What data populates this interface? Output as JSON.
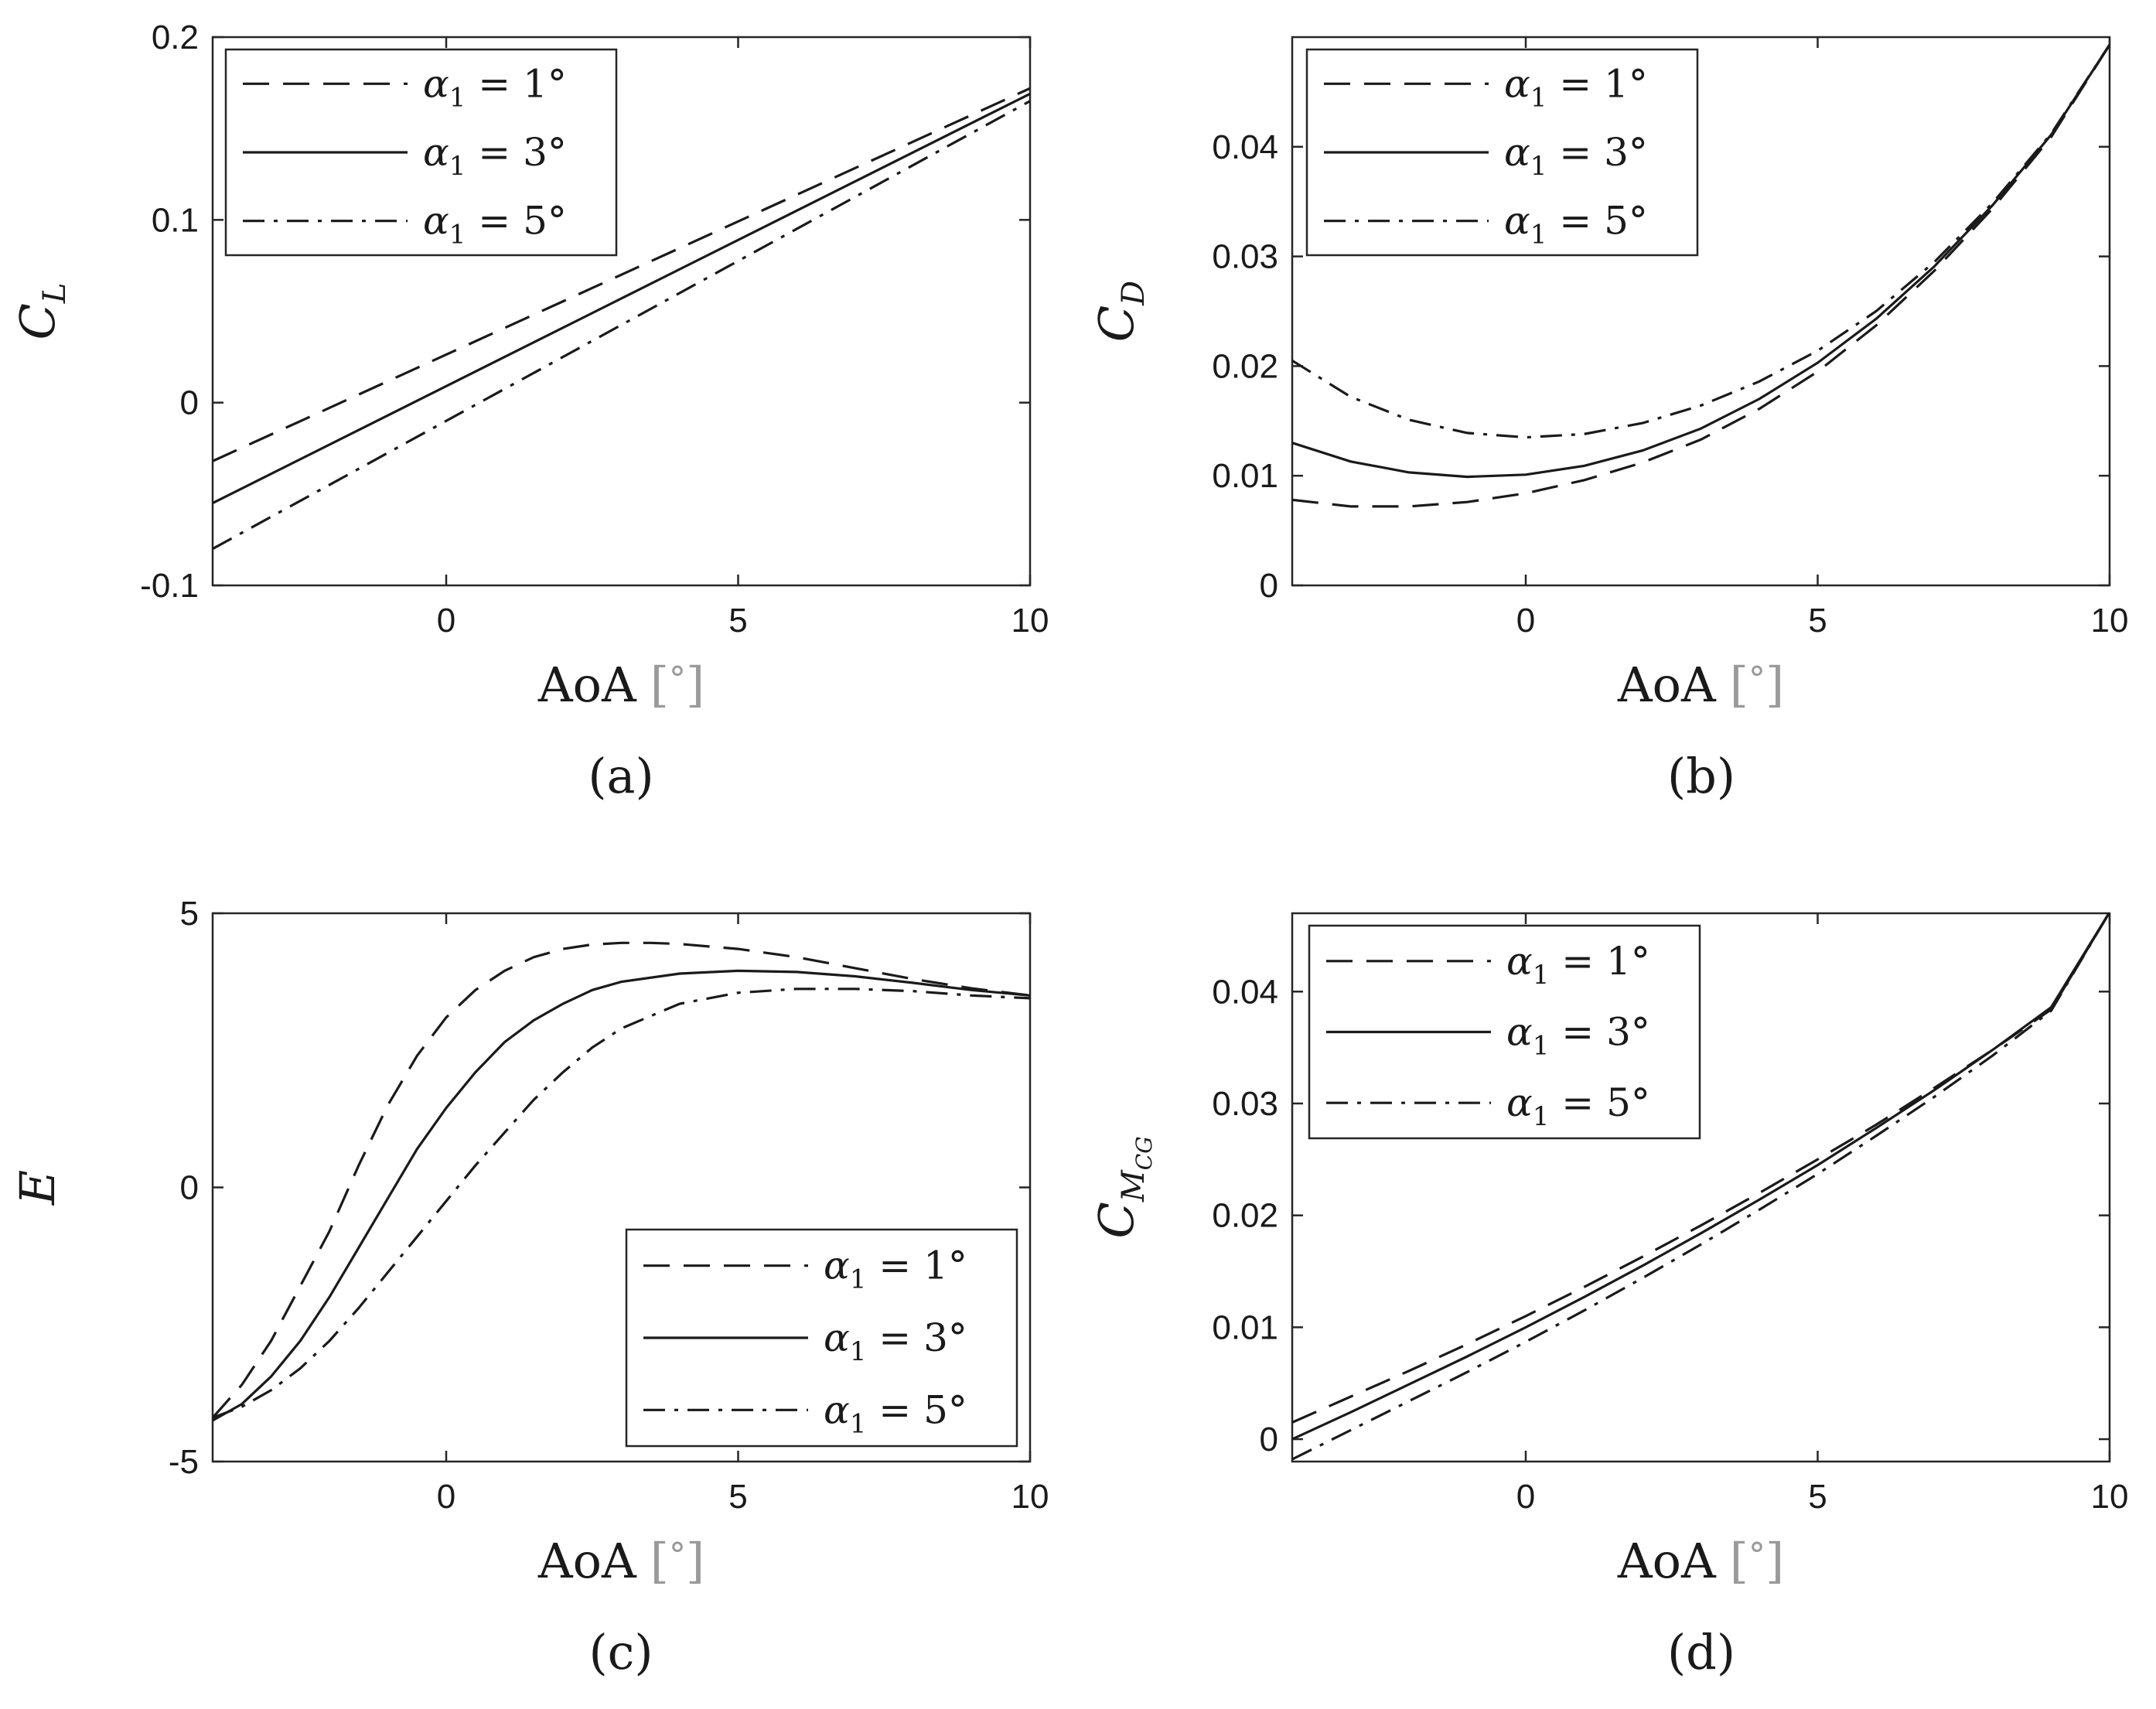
{
  "chart_data": [
    {
      "type": "line",
      "panel": "a",
      "caption": "(a)",
      "xlabel": "AoA",
      "xunit": "°",
      "ylabel": "C",
      "ylabel_sub": "L",
      "xlim": [
        -4,
        10
      ],
      "ylim": [
        -0.1,
        0.2
      ],
      "xticks": [
        0,
        5,
        10
      ],
      "xtick_labels": [
        "0",
        "5",
        "10"
      ],
      "yticks": [
        -0.1,
        0,
        0.1,
        0.2
      ],
      "ytick_labels": [
        "-0.1",
        "0",
        "0.1",
        "0.2"
      ],
      "legend_position": "top-left",
      "series": [
        {
          "name": "α1 = 1°",
          "label_main": "α",
          "label_sub": "1",
          "label_rest": " = 1°",
          "style": "dashed",
          "x": [
            -4,
            10
          ],
          "y": [
            -0.032,
            0.172
          ]
        },
        {
          "name": "α1 = 3°",
          "label_main": "α",
          "label_sub": "1",
          "label_rest": " = 3°",
          "style": "solid",
          "x": [
            -4,
            10
          ],
          "y": [
            -0.055,
            0.169
          ]
        },
        {
          "name": "α1 = 5°",
          "label_main": "α",
          "label_sub": "1",
          "label_rest": " = 5°",
          "style": "dashdot",
          "x": [
            -4,
            10
          ],
          "y": [
            -0.08,
            0.165
          ]
        }
      ]
    },
    {
      "type": "line",
      "panel": "b",
      "caption": "(b)",
      "xlabel": "AoA",
      "xunit": "°",
      "ylabel": "C",
      "ylabel_sub": "D",
      "xlim": [
        -4,
        10
      ],
      "ylim": [
        0,
        0.05
      ],
      "xticks": [
        0,
        5,
        10
      ],
      "xtick_labels": [
        "0",
        "5",
        "10"
      ],
      "yticks": [
        0,
        0.01,
        0.02,
        0.03,
        0.04
      ],
      "ytick_labels": [
        "0",
        "0.01",
        "0.02",
        "0.03",
        "0.04"
      ],
      "legend_position": "top-left",
      "series": [
        {
          "name": "α1 = 1°",
          "label_main": "α",
          "label_sub": "1",
          "label_rest": " = 1°",
          "style": "dashed",
          "x": [
            -4,
            -3,
            -2,
            -1,
            0,
            1,
            2,
            3,
            4,
            5,
            6,
            7,
            8,
            9,
            10
          ],
          "y": [
            0.0078,
            0.0072,
            0.0072,
            0.0076,
            0.0084,
            0.0096,
            0.0112,
            0.0133,
            0.0161,
            0.0195,
            0.0237,
            0.0287,
            0.0344,
            0.0409,
            0.0493
          ]
        },
        {
          "name": "α1 = 3°",
          "label_main": "α",
          "label_sub": "1",
          "label_rest": " = 3°",
          "style": "solid",
          "x": [
            -4,
            -3,
            -2,
            -1,
            0,
            1,
            2,
            3,
            4,
            5,
            6,
            7,
            8,
            9,
            10
          ],
          "y": [
            0.013,
            0.0113,
            0.0103,
            0.0099,
            0.0101,
            0.0109,
            0.0123,
            0.0143,
            0.017,
            0.0203,
            0.0243,
            0.0291,
            0.0347,
            0.0411,
            0.0493
          ]
        },
        {
          "name": "α1 = 5°",
          "label_main": "α",
          "label_sub": "1",
          "label_rest": " = 5°",
          "style": "dashdot",
          "x": [
            -4,
            -3,
            -2,
            -1,
            0,
            1,
            2,
            3,
            4,
            5,
            6,
            7,
            8,
            9,
            10
          ],
          "y": [
            0.0205,
            0.0172,
            0.0151,
            0.0139,
            0.0135,
            0.0138,
            0.0148,
            0.0164,
            0.0186,
            0.0214,
            0.025,
            0.0295,
            0.0349,
            0.0412,
            0.0493
          ]
        }
      ]
    },
    {
      "type": "line",
      "panel": "c",
      "caption": "(c)",
      "xlabel": "AoA",
      "xunit": "°",
      "ylabel": "E",
      "ylabel_sub": "",
      "xlim": [
        -4,
        10
      ],
      "ylim": [
        -5,
        5
      ],
      "xticks": [
        0,
        5,
        10
      ],
      "xtick_labels": [
        "0",
        "5",
        "10"
      ],
      "yticks": [
        -5,
        0,
        5
      ],
      "ytick_labels": [
        "-5",
        "0",
        "5"
      ],
      "legend_position": "bottom-right",
      "series": [
        {
          "name": "α1 = 1°",
          "label_main": "α",
          "label_sub": "1",
          "label_rest": " = 1°",
          "style": "dashed",
          "x": [
            -4,
            -3.5,
            -3,
            -2.5,
            -2,
            -1.5,
            -1,
            -0.5,
            0,
            0.5,
            1,
            1.5,
            2,
            2.5,
            3,
            3.5,
            4,
            5,
            6,
            7,
            8,
            9,
            10
          ],
          "y": [
            -4.2,
            -3.6,
            -2.8,
            -1.8,
            -0.8,
            0.4,
            1.5,
            2.4,
            3.1,
            3.6,
            3.95,
            4.2,
            4.35,
            4.43,
            4.46,
            4.46,
            4.44,
            4.35,
            4.2,
            4.0,
            3.8,
            3.63,
            3.5
          ]
        },
        {
          "name": "α1 = 3°",
          "label_main": "α",
          "label_sub": "1",
          "label_rest": " = 3°",
          "style": "solid",
          "x": [
            -4,
            -3.5,
            -3,
            -2.5,
            -2,
            -1.5,
            -1,
            -0.5,
            0,
            0.5,
            1,
            1.5,
            2,
            2.5,
            3,
            4,
            5,
            6,
            7,
            8,
            9,
            10
          ],
          "y": [
            -4.25,
            -3.95,
            -3.45,
            -2.8,
            -2.0,
            -1.1,
            -0.2,
            0.7,
            1.45,
            2.1,
            2.65,
            3.05,
            3.35,
            3.6,
            3.75,
            3.9,
            3.95,
            3.93,
            3.85,
            3.73,
            3.6,
            3.5
          ]
        },
        {
          "name": "α1 = 5°",
          "label_main": "α",
          "label_sub": "1",
          "label_rest": " = 5°",
          "style": "dashdot",
          "x": [
            -4,
            -3.5,
            -3,
            -2.5,
            -2,
            -1.5,
            -1,
            -0.5,
            0,
            0.5,
            1,
            1.5,
            2,
            2.5,
            3,
            4,
            5,
            6,
            7,
            8,
            9,
            10
          ],
          "y": [
            -4.2,
            -4.0,
            -3.7,
            -3.3,
            -2.8,
            -2.2,
            -1.55,
            -0.9,
            -0.25,
            0.4,
            1.0,
            1.6,
            2.1,
            2.55,
            2.9,
            3.35,
            3.55,
            3.62,
            3.62,
            3.58,
            3.5,
            3.45
          ]
        }
      ]
    },
    {
      "type": "line",
      "panel": "d",
      "caption": "(d)",
      "xlabel": "AoA",
      "xunit": "°",
      "ylabel": "C",
      "ylabel_sub": "M",
      "ylabel_subsub": "CG",
      "xlim": [
        -4,
        10
      ],
      "ylim": [
        -0.002,
        0.047
      ],
      "xticks": [
        0,
        5,
        10
      ],
      "xtick_labels": [
        "0",
        "5",
        "10"
      ],
      "yticks": [
        0,
        0.01,
        0.02,
        0.03,
        0.04
      ],
      "ytick_labels": [
        "0",
        "0.01",
        "0.02",
        "0.03",
        "0.04"
      ],
      "legend_position": "top-left",
      "series": [
        {
          "name": "α1 = 1°",
          "label_main": "α",
          "label_sub": "1",
          "label_rest": " = 1°",
          "style": "dashed",
          "x": [
            -4,
            -3,
            -2,
            -1,
            0,
            1,
            2,
            3,
            4,
            5,
            6,
            7,
            8,
            9,
            10
          ],
          "y": [
            0.0015,
            0.0038,
            0.0061,
            0.0085,
            0.011,
            0.0136,
            0.0163,
            0.0191,
            0.022,
            0.025,
            0.0281,
            0.0314,
            0.0348,
            0.0384,
            0.0471
          ]
        },
        {
          "name": "α1 = 3°",
          "label_main": "α",
          "label_sub": "1",
          "label_rest": " = 3°",
          "style": "solid",
          "x": [
            -4,
            -3,
            -2,
            -1,
            0,
            1,
            2,
            3,
            4,
            5,
            6,
            7,
            8,
            9,
            10
          ],
          "y": [
            0.0,
            0.0024,
            0.0049,
            0.0074,
            0.01,
            0.0127,
            0.0155,
            0.0184,
            0.0214,
            0.0245,
            0.0278,
            0.0312,
            0.0348,
            0.0386,
            0.0471
          ]
        },
        {
          "name": "α1 = 5°",
          "label_main": "α",
          "label_sub": "1",
          "label_rest": " = 5°",
          "style": "dashdot",
          "x": [
            -4,
            -3,
            -2,
            -1,
            0,
            1,
            2,
            3,
            4,
            5,
            6,
            7,
            8,
            9,
            10
          ],
          "y": [
            -0.0018,
            0.0008,
            0.0034,
            0.006,
            0.0087,
            0.0115,
            0.0144,
            0.0174,
            0.0205,
            0.0237,
            0.0271,
            0.0306,
            0.0343,
            0.0383,
            0.0471
          ]
        }
      ]
    }
  ]
}
